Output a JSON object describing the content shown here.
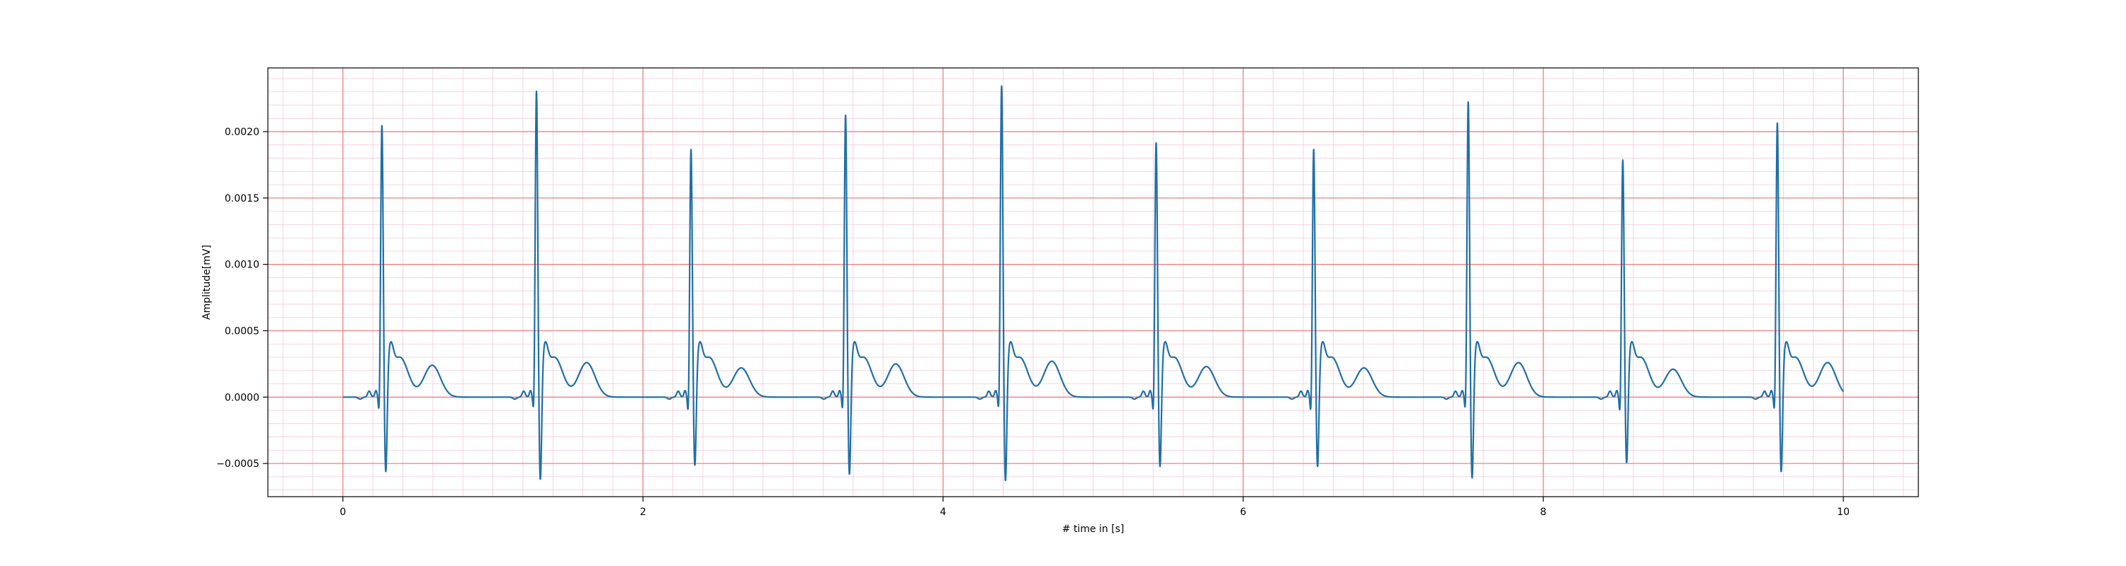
{
  "chart_data": {
    "type": "line",
    "title": "",
    "xlabel": "# time in [s]",
    "ylabel": "Amplitude[mV]",
    "xlim": [
      -0.5,
      10.5
    ],
    "ylim": [
      -0.00075,
      0.00248
    ],
    "x_ticks": [
      0,
      2,
      4,
      6,
      8,
      10
    ],
    "x_tick_labels": [
      "0",
      "2",
      "4",
      "6",
      "8",
      "10"
    ],
    "y_ticks": [
      -0.0005,
      0.0,
      0.0005,
      0.001,
      0.0015,
      0.002
    ],
    "y_tick_labels": [
      "−0.0005",
      "0.0000",
      "0.0005",
      "0.0010",
      "0.0015",
      "0.0020"
    ],
    "grid": {
      "major": true,
      "minor": true,
      "major_color": "#f08080",
      "minor_color": "#f5c8dc",
      "x_minor_step": 0.2,
      "y_minor_step": 0.0001
    },
    "line_color": "#1f6fa8",
    "sampling_rate_hz": 100,
    "beats": [
      {
        "time": 0.26,
        "r_peak": 0.00203,
        "s_min": -0.00052,
        "t_peak": 0.00016
      },
      {
        "time": 1.29,
        "r_peak": 0.00229,
        "s_min": -0.00058,
        "t_peak": 0.00018
      },
      {
        "time": 2.32,
        "r_peak": 0.00185,
        "s_min": -0.00047,
        "t_peak": 0.00014
      },
      {
        "time": 3.35,
        "r_peak": 0.00211,
        "s_min": -0.00054,
        "t_peak": 0.00017
      },
      {
        "time": 4.39,
        "r_peak": 0.00233,
        "s_min": -0.00059,
        "t_peak": 0.00019
      },
      {
        "time": 5.42,
        "r_peak": 0.0019,
        "s_min": -0.00048,
        "t_peak": 0.00015
      },
      {
        "time": 6.47,
        "r_peak": 0.00185,
        "s_min": -0.00048,
        "t_peak": 0.00014
      },
      {
        "time": 7.5,
        "r_peak": 0.00221,
        "s_min": -0.00057,
        "t_peak": 0.00018
      },
      {
        "time": 8.53,
        "r_peak": 0.00177,
        "s_min": -0.00045,
        "t_peak": 0.00013
      },
      {
        "time": 9.56,
        "r_peak": 0.00205,
        "s_min": -0.00052,
        "t_peak": 0.00018
      }
    ],
    "series": [
      {
        "x_start": 0,
        "x_end": 10
      }
    ]
  }
}
